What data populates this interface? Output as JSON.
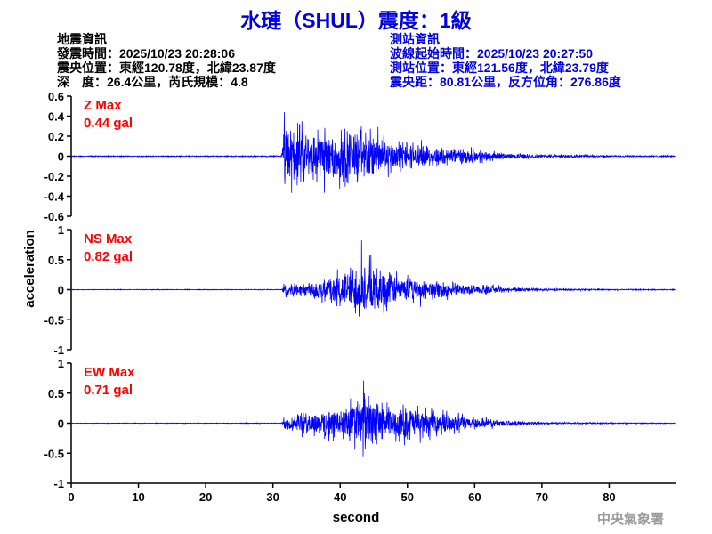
{
  "title": "水璉（SHUL）震度：1級",
  "quake_info": {
    "heading": "地震資訊",
    "origin_time": "發震時間：2025/10/23 20:28:06",
    "epicenter": "震央位置：東經120.78度，北緯23.87度",
    "depth_mag": "深　度：26.4公里，芮氏規模：4.8"
  },
  "station_info": {
    "heading": "測站資訊",
    "wave_start": "波線起始時間：2025/10/23 20:27:50",
    "location": "測站位置：東經121.56度，北緯23.79度",
    "distance": "震央距：80.81公里，反方位角：276.86度"
  },
  "footer": "中央氣象署",
  "chart_data": {
    "type": "line",
    "xlabel": "second",
    "ylabel": "acceleration",
    "xlim": [
      0,
      90
    ],
    "xticks": [
      "0",
      "10",
      "20",
      "30",
      "40",
      "50",
      "60",
      "70",
      "80"
    ],
    "line_color": "#0000ff",
    "label_color": "#ff0000",
    "panels": [
      {
        "label": "Z Max",
        "max": "0.44 gal",
        "ylim": [
          -0.6,
          0.6
        ],
        "yticks": [
          "0.6",
          "0.4",
          "0.2",
          "0",
          "-0.2",
          "-0.4",
          "-0.6"
        ],
        "envelope_t": [
          0,
          31.3,
          31.6,
          35,
          40,
          45,
          50,
          55,
          60,
          65,
          70,
          80,
          90
        ],
        "envelope_a": [
          0.005,
          0.006,
          0.35,
          0.3,
          0.3,
          0.25,
          0.15,
          0.1,
          0.07,
          0.03,
          0.02,
          0.01,
          0.008
        ],
        "peak_t": 31.7,
        "peak": 0.44
      },
      {
        "label": "NS Max",
        "max": "0.82 gal",
        "ylim": [
          -1,
          1
        ],
        "yticks": [
          "1",
          "0.5",
          "0",
          "-0.5",
          "-1"
        ],
        "envelope_t": [
          0,
          31.3,
          31.6,
          35,
          40,
          43,
          47,
          50,
          55,
          60,
          65,
          70,
          80,
          90
        ],
        "envelope_a": [
          0.005,
          0.006,
          0.12,
          0.15,
          0.3,
          0.5,
          0.35,
          0.25,
          0.15,
          0.1,
          0.04,
          0.02,
          0.01,
          0.008
        ],
        "peak_t": 43.2,
        "peak": 0.82
      },
      {
        "label": "EW Max",
        "max": "0.71 gal",
        "ylim": [
          -1,
          1
        ],
        "yticks": [
          "1",
          "0.5",
          "0",
          "-0.5",
          "-1"
        ],
        "envelope_t": [
          0,
          31.3,
          31.6,
          35,
          40,
          43,
          47,
          50,
          55,
          60,
          65,
          70,
          80,
          90
        ],
        "envelope_a": [
          0.005,
          0.006,
          0.15,
          0.2,
          0.3,
          0.5,
          0.35,
          0.3,
          0.2,
          0.12,
          0.05,
          0.02,
          0.01,
          0.008
        ],
        "peak_t": 43.5,
        "peak": 0.71
      }
    ]
  }
}
